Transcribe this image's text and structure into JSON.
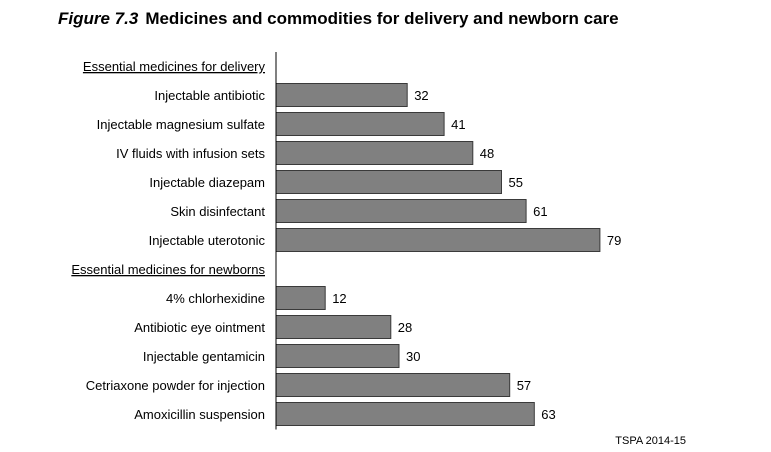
{
  "figure_label": "Figure 7.3",
  "title": "Medicines and commodities for delivery and newborn care",
  "source": "TSPA 2014-15",
  "colors": {
    "bar": "#808080",
    "bar_stroke": "#3a3a3a",
    "axis": "#000000"
  },
  "chart_data": {
    "type": "bar",
    "orientation": "horizontal",
    "title": "Medicines and commodities for delivery and newborn care",
    "xlabel": "",
    "ylabel": "",
    "xlim": [
      0,
      100
    ],
    "grid": false,
    "legend": "none",
    "groups": [
      {
        "name": "Essential medicines for delivery",
        "categories": [
          "Injectable antibiotic",
          "Injectable magnesium sulfate",
          "IV fluids with infusion sets",
          "Injectable diazepam",
          "Skin disinfectant",
          "Injectable uterotonic"
        ],
        "values": [
          32,
          41,
          48,
          55,
          61,
          79
        ]
      },
      {
        "name": "Essential medicines for newborns",
        "categories": [
          "4% chlorhexidine",
          "Antibiotic eye ointment",
          "Injectable gentamicin",
          "Cetriaxone powder for injection",
          "Amoxicillin suspension"
        ],
        "values": [
          12,
          28,
          30,
          57,
          63
        ]
      }
    ]
  }
}
